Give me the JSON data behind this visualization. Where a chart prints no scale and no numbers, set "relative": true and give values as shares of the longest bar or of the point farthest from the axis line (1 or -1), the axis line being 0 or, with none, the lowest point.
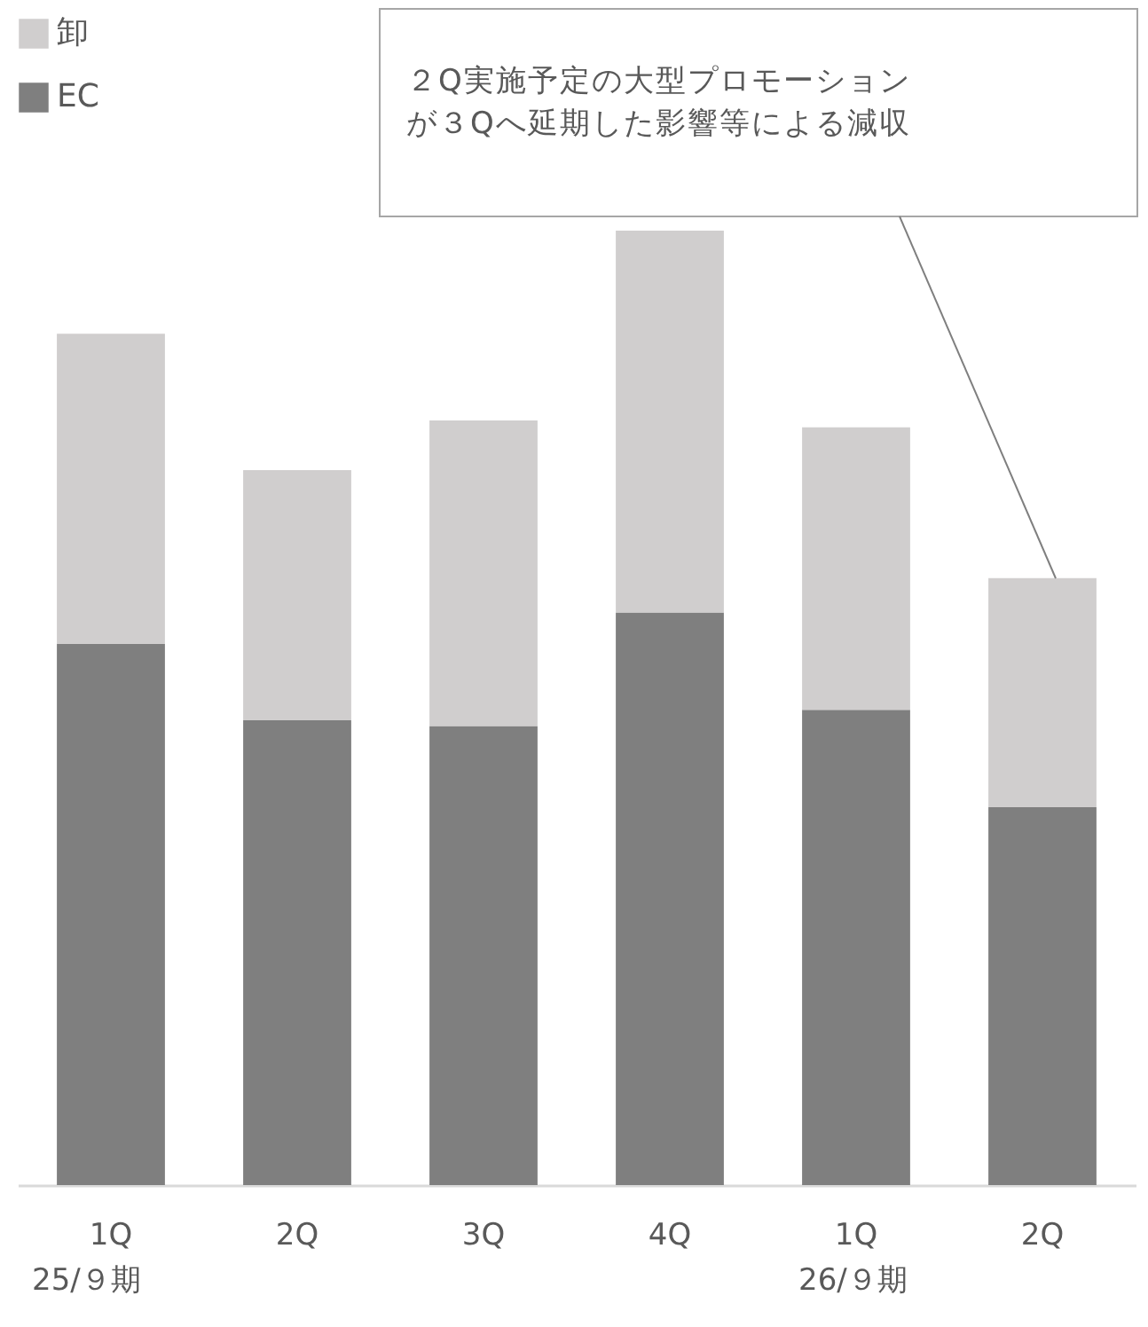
{
  "chart_data": {
    "type": "bar",
    "stacked": true,
    "relative": true,
    "legend": "top left",
    "categories": [
      "1Q",
      "2Q",
      "3Q",
      "4Q",
      "1Q",
      "2Q"
    ],
    "series": [
      {
        "name": "EC",
        "color": "#7f7f7f",
        "values": [
          0.567,
          0.487,
          0.481,
          0.6,
          0.498,
          0.396
        ]
      },
      {
        "name": "卸",
        "color": "#d0cece",
        "values": [
          0.325,
          0.262,
          0.32,
          0.4,
          0.296,
          0.24
        ]
      }
    ],
    "annotations": [
      "25/９期",
      "26/９期",
      "２Q実施予定の大型プロモーションが３Qへ延期した影響等による減収"
    ]
  }
}
